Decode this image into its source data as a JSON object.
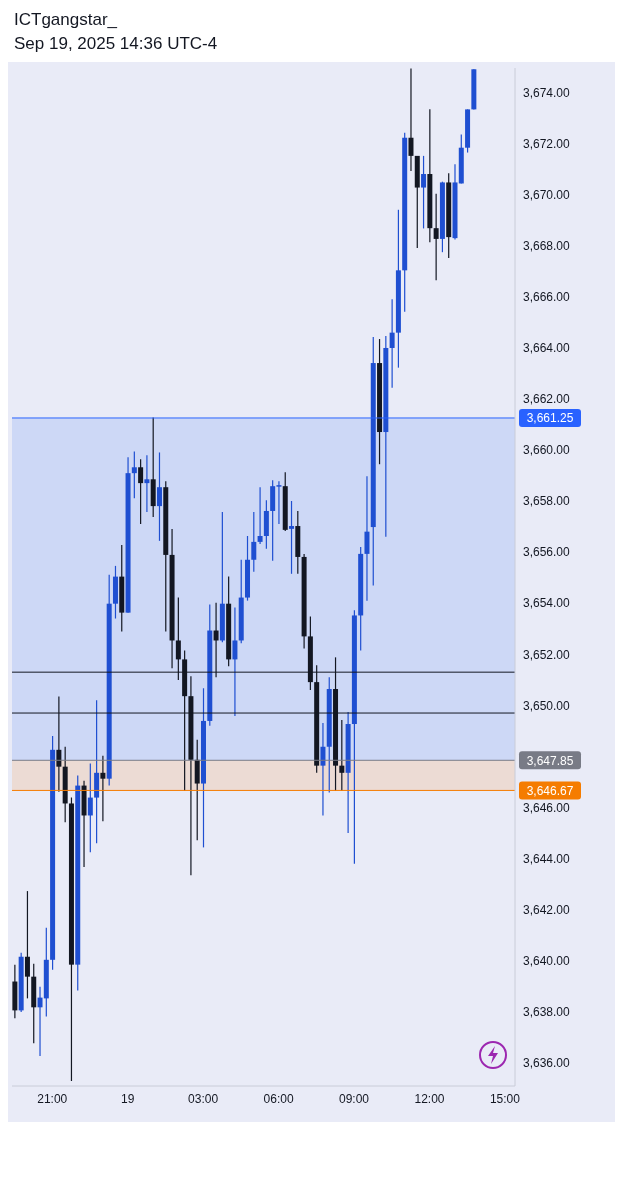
{
  "chart_data": {
    "type": "candlestick",
    "title": "ICTgangstar_",
    "subtitle": "Sep 19, 2025 14:36 UTC-4",
    "x": [
      "2025-09-18T19:30",
      "2025-09-18T19:45",
      "2025-09-18T20:00",
      "2025-09-18T20:15",
      "2025-09-18T20:30",
      "2025-09-18T20:45",
      "2025-09-18T21:00",
      "2025-09-18T21:15",
      "2025-09-18T21:30",
      "2025-09-18T21:45",
      "2025-09-18T22:00",
      "2025-09-18T22:15",
      "2025-09-18T22:30",
      "2025-09-18T22:45",
      "2025-09-18T23:00",
      "2025-09-18T23:15",
      "2025-09-18T23:30",
      "2025-09-18T23:45",
      "2025-09-19T00:00",
      "2025-09-19T00:15",
      "2025-09-19T00:30",
      "2025-09-19T00:45",
      "2025-09-19T01:00",
      "2025-09-19T01:15",
      "2025-09-19T01:30",
      "2025-09-19T01:45",
      "2025-09-19T02:00",
      "2025-09-19T02:15",
      "2025-09-19T02:30",
      "2025-09-19T02:45",
      "2025-09-19T03:00",
      "2025-09-19T03:15",
      "2025-09-19T03:30",
      "2025-09-19T03:45",
      "2025-09-19T04:00",
      "2025-09-19T04:15",
      "2025-09-19T04:30",
      "2025-09-19T04:45",
      "2025-09-19T05:00",
      "2025-09-19T05:15",
      "2025-09-19T05:30",
      "2025-09-19T05:45",
      "2025-09-19T06:00",
      "2025-09-19T06:15",
      "2025-09-19T06:30",
      "2025-09-19T06:45",
      "2025-09-19T07:00",
      "2025-09-19T07:15",
      "2025-09-19T07:30",
      "2025-09-19T07:45",
      "2025-09-19T08:00",
      "2025-09-19T08:15",
      "2025-09-19T08:30",
      "2025-09-19T08:45",
      "2025-09-19T09:00",
      "2025-09-19T09:15",
      "2025-09-19T09:30",
      "2025-09-19T09:45",
      "2025-09-19T10:00",
      "2025-09-19T10:15",
      "2025-09-19T10:30",
      "2025-09-19T10:45",
      "2025-09-19T11:00",
      "2025-09-19T11:15",
      "2025-09-19T11:30",
      "2025-09-19T11:45",
      "2025-09-19T12:00",
      "2025-09-19T12:15",
      "2025-09-19T12:30",
      "2025-09-19T12:45",
      "2025-09-19T13:00",
      "2025-09-19T13:15",
      "2025-09-19T13:30",
      "2025-09-19T13:45"
    ],
    "ohlc": [
      [
        3639.19,
        3639.85,
        3637.75,
        3638.06
      ],
      [
        3638.06,
        3640.32,
        3638.0,
        3640.16
      ],
      [
        3640.16,
        3642.73,
        3638.53,
        3639.38
      ],
      [
        3639.38,
        3639.89,
        3636.77,
        3638.18
      ],
      [
        3638.18,
        3638.99,
        3636.27,
        3638.56
      ],
      [
        3638.53,
        3641.29,
        3637.82,
        3640.04
      ],
      [
        3640.04,
        3648.8,
        3639.65,
        3648.26
      ],
      [
        3648.26,
        3650.35,
        3646.62,
        3647.6
      ],
      [
        3647.6,
        3648.38,
        3645.42,
        3646.16
      ],
      [
        3646.16,
        3646.39,
        3635.3,
        3639.85
      ],
      [
        3639.85,
        3647.25,
        3638.84,
        3646.86
      ],
      [
        3646.86,
        3647.05,
        3643.67,
        3645.69
      ],
      [
        3645.69,
        3647.72,
        3644.25,
        3646.39
      ],
      [
        3646.39,
        3650.2,
        3644.6,
        3647.36
      ],
      [
        3647.36,
        3648.03,
        3645.46,
        3647.13
      ],
      [
        3647.13,
        3655.11,
        3646.86,
        3653.98
      ],
      [
        3653.98,
        3655.46,
        3653.4,
        3655.04
      ],
      [
        3655.04,
        3656.28,
        3652.89,
        3653.63
      ],
      [
        3653.63,
        3659.71,
        3653.63,
        3659.09
      ],
      [
        3659.09,
        3659.94,
        3658.11,
        3659.32
      ],
      [
        3659.32,
        3659.63,
        3657.1,
        3658.7
      ],
      [
        3658.7,
        3659.79,
        3657.57,
        3658.85
      ],
      [
        3658.85,
        3661.27,
        3657.37,
        3657.8
      ],
      [
        3657.8,
        3659.9,
        3656.44,
        3658.54
      ],
      [
        3658.54,
        3658.77,
        3652.89,
        3655.89
      ],
      [
        3655.89,
        3656.9,
        3651.45,
        3652.54
      ],
      [
        3652.54,
        3654.22,
        3650.99,
        3651.8
      ],
      [
        3651.8,
        3652.15,
        3646.66,
        3650.36
      ],
      [
        3650.36,
        3651.14,
        3643.35,
        3647.87
      ],
      [
        3647.87,
        3648.65,
        3644.72,
        3646.94
      ],
      [
        3646.94,
        3650.67,
        3644.44,
        3649.39
      ],
      [
        3649.39,
        3653.95,
        3649.2,
        3652.93
      ],
      [
        3652.93,
        3654.02,
        3651.1,
        3652.54
      ],
      [
        3652.54,
        3657.57,
        3652.47,
        3653.98
      ],
      [
        3653.98,
        3655.04,
        3651.53,
        3651.8
      ],
      [
        3651.8,
        3653.83,
        3649.58,
        3652.54
      ],
      [
        3652.54,
        3655.7,
        3652.43,
        3654.22
      ],
      [
        3654.22,
        3656.63,
        3654.1,
        3655.7
      ],
      [
        3655.7,
        3657.57,
        3655.23,
        3656.4
      ],
      [
        3656.4,
        3658.54,
        3656.32,
        3656.63
      ],
      [
        3656.63,
        3658.03,
        3656.13,
        3657.61
      ],
      [
        3657.61,
        3658.81,
        3655.66,
        3658.58
      ],
      [
        3658.58,
        3658.77,
        3657.1,
        3658.62
      ],
      [
        3658.58,
        3659.13,
        3656.83,
        3656.87
      ],
      [
        3656.91,
        3658.0,
        3655.15,
        3657.02
      ],
      [
        3657.02,
        3657.61,
        3655.15,
        3655.81
      ],
      [
        3655.81,
        3655.93,
        3652.23,
        3652.7
      ],
      [
        3652.7,
        3653.48,
        3650.6,
        3650.91
      ],
      [
        3650.91,
        3651.57,
        3647.36,
        3647.64
      ],
      [
        3647.64,
        3649.31,
        3645.69,
        3648.38
      ],
      [
        3648.38,
        3651.1,
        3646.59,
        3650.64
      ],
      [
        3650.64,
        3651.88,
        3646.66,
        3647.64
      ],
      [
        3647.64,
        3649.43,
        3646.66,
        3647.36
      ],
      [
        3647.36,
        3649.74,
        3645.0,
        3649.27
      ],
      [
        3649.27,
        3653.72,
        3643.8,
        3653.52
      ],
      [
        3653.52,
        3656.2,
        3652.15,
        3655.93
      ],
      [
        3655.93,
        3658.97,
        3654.1,
        3656.8
      ],
      [
        3656.98,
        3664.42,
        3654.69,
        3663.4
      ],
      [
        3663.4,
        3664.34,
        3659.44,
        3660.7
      ],
      [
        3660.7,
        3664.46,
        3656.6,
        3663.99
      ],
      [
        3663.99,
        3665.9,
        3662.43,
        3664.59
      ],
      [
        3664.59,
        3669.4,
        3663.22,
        3667.03
      ],
      [
        3667.03,
        3672.42,
        3665.41,
        3672.22
      ],
      [
        3672.22,
        3674.93,
        3670.92,
        3671.51
      ],
      [
        3671.51,
        3671.51,
        3667.9,
        3670.27
      ],
      [
        3670.27,
        3671.51,
        3668.67,
        3670.8
      ],
      [
        3670.8,
        3673.34,
        3668.13,
        3668.68
      ],
      [
        3668.68,
        3670.03,
        3666.64,
        3668.26
      ],
      [
        3668.26,
        3670.5,
        3667.74,
        3670.47
      ],
      [
        3670.47,
        3670.83,
        3667.51,
        3668.33
      ],
      [
        3668.29,
        3671.18,
        3668.24,
        3670.47
      ],
      [
        3670.43,
        3672.35,
        3670.43,
        3671.83
      ],
      [
        3671.83,
        3673.33,
        3671.64,
        3673.33
      ],
      [
        3673.33,
        3674.9,
        3673.33,
        3674.9
      ]
    ],
    "colors": [
      "#131722",
      "#1f4fd1",
      "#131722",
      "#131722",
      "#1f4fd1",
      "#1f4fd1",
      "#1f4fd1",
      "#131722",
      "#131722",
      "#131722",
      "#1f4fd1",
      "#131722",
      "#1f4fd1",
      "#1f4fd1",
      "#131722",
      "#1f4fd1",
      "#1f4fd1",
      "#131722",
      "#1f4fd1",
      "#1f4fd1",
      "#131722",
      "#1f4fd1",
      "#131722",
      "#1f4fd1",
      "#131722",
      "#131722",
      "#131722",
      "#131722",
      "#131722",
      "#131722",
      "#1f4fd1",
      "#1f4fd1",
      "#131722",
      "#1f4fd1",
      "#131722",
      "#1f4fd1",
      "#1f4fd1",
      "#1f4fd1",
      "#1f4fd1",
      "#1f4fd1",
      "#1f4fd1",
      "#1f4fd1",
      "#1f4fd1",
      "#131722",
      "#1f4fd1",
      "#131722",
      "#131722",
      "#131722",
      "#131722",
      "#1f4fd1",
      "#1f4fd1",
      "#131722",
      "#131722",
      "#1f4fd1",
      "#1f4fd1",
      "#1f4fd1",
      "#1f4fd1",
      "#1f4fd1",
      "#131722",
      "#1f4fd1",
      "#1f4fd1",
      "#1f4fd1",
      "#1f4fd1",
      "#131722",
      "#131722",
      "#1f4fd1",
      "#131722",
      "#131722",
      "#1f4fd1",
      "#131722",
      "#1f4fd1",
      "#1f4fd1",
      "#1f4fd1",
      "#1f4fd1"
    ],
    "xlim": [
      "2025-09-18T19:24",
      "2025-09-19T15:24"
    ],
    "xticks": [
      {
        "value": "2025-09-18T21:00",
        "label": "21:00"
      },
      {
        "value": "2025-09-19T00:00",
        "label": "19"
      },
      {
        "value": "2025-09-19T03:00",
        "label": "03:00"
      },
      {
        "value": "2025-09-19T06:00",
        "label": "06:00"
      },
      {
        "value": "2025-09-19T09:00",
        "label": "09:00"
      },
      {
        "value": "2025-09-19T12:00",
        "label": "12:00"
      },
      {
        "value": "2025-09-19T15:00",
        "label": "15:00"
      }
    ],
    "ylim": [
      3635.1,
      3674.95
    ],
    "yticks": [
      {
        "value": 3636,
        "label": "3,636.00"
      },
      {
        "value": 3638,
        "label": "3,638.00"
      },
      {
        "value": 3640,
        "label": "3,640.00"
      },
      {
        "value": 3642,
        "label": "3,642.00"
      },
      {
        "value": 3644,
        "label": "3,644.00"
      },
      {
        "value": 3646,
        "label": "3,646.00"
      },
      {
        "value": 3650,
        "label": "3,650.00"
      },
      {
        "value": 3652,
        "label": "3,652.00"
      },
      {
        "value": 3654,
        "label": "3,654.00"
      },
      {
        "value": 3656,
        "label": "3,656.00"
      },
      {
        "value": 3658,
        "label": "3,658.00"
      },
      {
        "value": 3660,
        "label": "3,660.00"
      },
      {
        "value": 3662,
        "label": "3,662.00"
      },
      {
        "value": 3664,
        "label": "3,664.00"
      },
      {
        "value": 3666,
        "label": "3,666.00"
      },
      {
        "value": 3668,
        "label": "3,668.00"
      },
      {
        "value": 3670,
        "label": "3,670.00"
      },
      {
        "value": 3672,
        "label": "3,672.00"
      },
      {
        "value": 3674,
        "label": "3,674.00"
      }
    ],
    "bands": [
      {
        "axis": "y",
        "from": 3647.85,
        "to": 3661.25,
        "color": "#c3d1f5"
      },
      {
        "axis": "y",
        "from": 3646.67,
        "to": 3647.85,
        "color": "#ecd6c8"
      }
    ],
    "ref_lines": [
      {
        "axis": "y",
        "value": 3661.25,
        "label": "3,661.25",
        "color": "#2962ff"
      },
      {
        "axis": "y",
        "value": 3647.85,
        "label": "3,647.85",
        "color": "#787b86"
      },
      {
        "axis": "y",
        "value": 3646.67,
        "label": "3,646.67",
        "color": "#f57c00"
      },
      {
        "axis": "y",
        "value": 3649.7,
        "label": null,
        "color": "#131722"
      },
      {
        "axis": "y",
        "value": 3651.3,
        "label": null,
        "color": "#131722"
      }
    ],
    "grid": false,
    "legend": false
  }
}
